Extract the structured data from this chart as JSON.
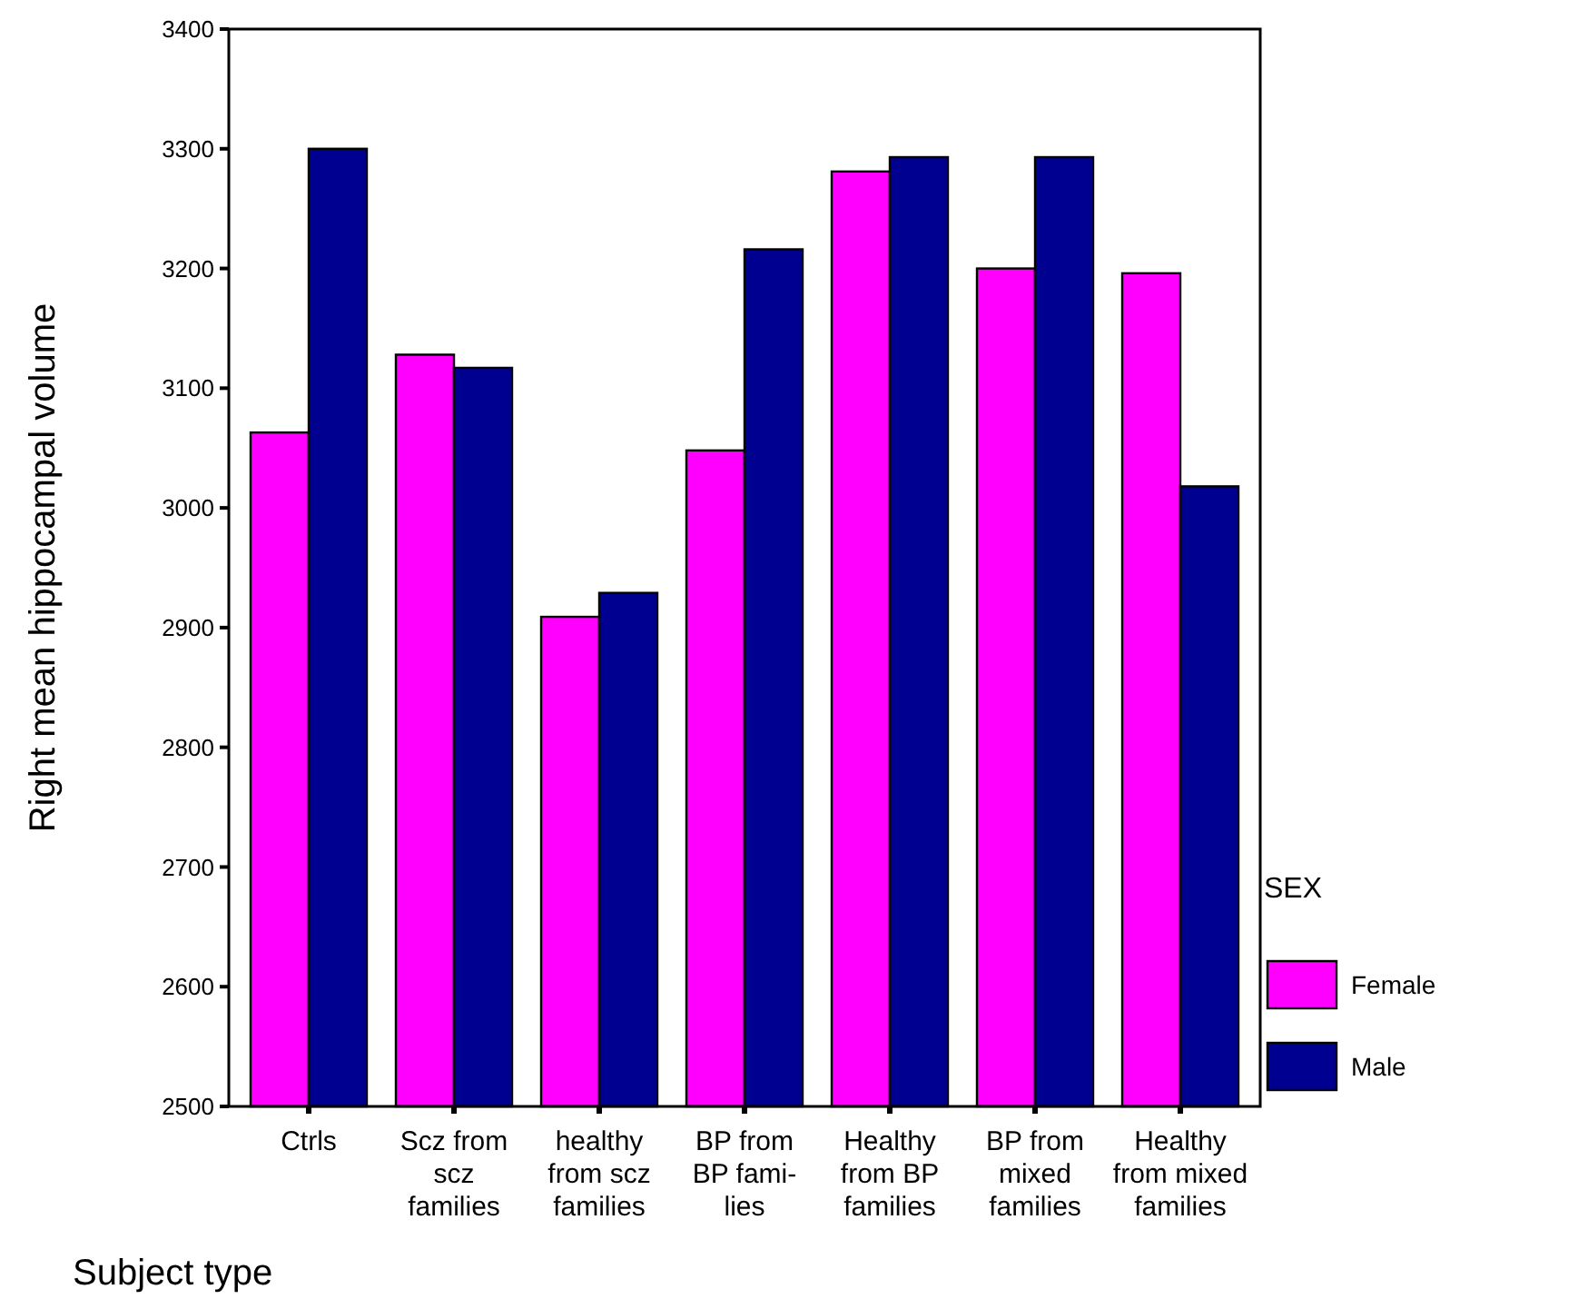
{
  "chart_data": {
    "type": "bar",
    "xlabel": "Subject type",
    "ylabel": "Right mean hippocampal volume",
    "legend_title": "SEX",
    "legend": "right",
    "categories": [
      "Ctrls",
      "Scz from\nscz\nfamilies",
      "healthy\nfrom scz\nfamilies",
      "BP from\nBP fami-\nlies",
      "Healthy\nfrom BP\nfamilies",
      "BP from\nmixed\nfamilies",
      "Healthy\nfrom mixed\nfamilies"
    ],
    "series": [
      {
        "name": "Female",
        "color": "#ff00ff",
        "values": [
          3063,
          3128,
          2909,
          3048,
          3281,
          3200,
          3196
        ]
      },
      {
        "name": "Male",
        "color": "#000090",
        "values": [
          3300,
          3117,
          2929,
          3216,
          3293,
          3293,
          3018
        ]
      }
    ],
    "ylim": [
      2500,
      3400
    ],
    "yticks": [
      2500,
      2600,
      2700,
      2800,
      2900,
      3000,
      3100,
      3200,
      3300,
      3400
    ],
    "grid": false
  }
}
